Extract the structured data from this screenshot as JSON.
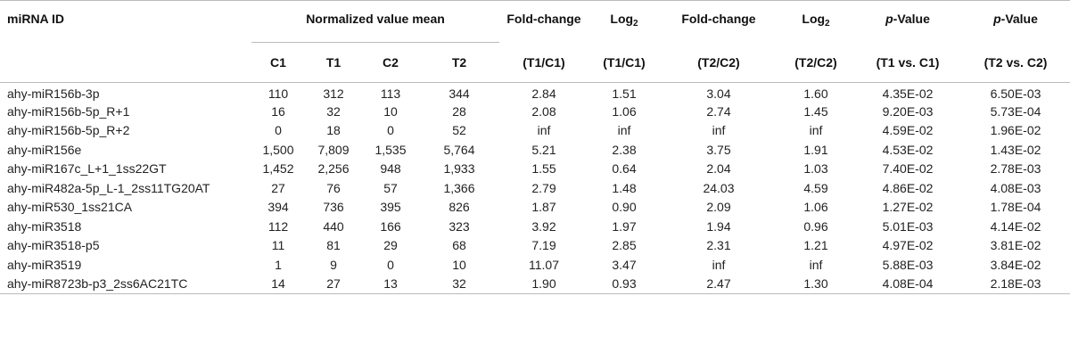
{
  "table": {
    "header": {
      "mirna_id": "miRNA ID",
      "norm_mean": "Normalized value mean",
      "sub_cols": [
        "C1",
        "T1",
        "C2",
        "T2"
      ],
      "fold1_top": "Fold-change",
      "fold1_bottom": "(T1/C1)",
      "log1_top_main": "Log",
      "log1_top_sub": "2",
      "log1_bottom": "(T1/C1)",
      "fold2_top": "Fold-change",
      "fold2_bottom": "(T2/C2)",
      "log2_top_main": "Log",
      "log2_top_sub": "2",
      "log2_bottom": "(T2/C2)",
      "p1_italic": "p",
      "p1_rest": "-Value",
      "p1_bottom": "(T1 vs. C1)",
      "p2_italic": "p",
      "p2_rest": "-Value",
      "p2_bottom": "(T2 vs. C2)"
    },
    "rows": [
      [
        "ahy-miR156b-3p",
        "110",
        "312",
        "113",
        "344",
        "2.84",
        "1.51",
        "3.04",
        "1.60",
        "4.35E-02",
        "6.50E-03"
      ],
      [
        "ahy-miR156b-5p_R+1",
        "16",
        "32",
        "10",
        "28",
        "2.08",
        "1.06",
        "2.74",
        "1.45",
        "9.20E-03",
        "5.73E-04"
      ],
      [
        "ahy-miR156b-5p_R+2",
        "0",
        "18",
        "0",
        "52",
        "inf",
        "inf",
        "inf",
        "inf",
        "4.59E-02",
        "1.96E-02"
      ],
      [
        "ahy-miR156e",
        "1,500",
        "7,809",
        "1,535",
        "5,764",
        "5.21",
        "2.38",
        "3.75",
        "1.91",
        "4.53E-02",
        "1.43E-02"
      ],
      [
        "ahy-miR167c_L+1_1ss22GT",
        "1,452",
        "2,256",
        "948",
        "1,933",
        "1.55",
        "0.64",
        "2.04",
        "1.03",
        "7.40E-02",
        "2.78E-03"
      ],
      [
        "ahy-miR482a-5p_L-1_2ss11TG20AT",
        "27",
        "76",
        "57",
        "1,366",
        "2.79",
        "1.48",
        "24.03",
        "4.59",
        "4.86E-02",
        "4.08E-03"
      ],
      [
        "ahy-miR530_1ss21CA",
        "394",
        "736",
        "395",
        "826",
        "1.87",
        "0.90",
        "2.09",
        "1.06",
        "1.27E-02",
        "1.78E-04"
      ],
      [
        "ahy-miR3518",
        "112",
        "440",
        "166",
        "323",
        "3.92",
        "1.97",
        "1.94",
        "0.96",
        "5.01E-03",
        "4.14E-02"
      ],
      [
        "ahy-miR3518-p5",
        "11",
        "81",
        "29",
        "68",
        "7.19",
        "2.85",
        "2.31",
        "1.21",
        "4.97E-02",
        "3.81E-02"
      ],
      [
        "ahy-miR3519",
        "1",
        "9",
        "0",
        "10",
        "11.07",
        "3.47",
        "inf",
        "inf",
        "5.88E-03",
        "3.84E-02"
      ],
      [
        "ahy-miR8723b-p3_2ss6AC21TC",
        "14",
        "27",
        "13",
        "32",
        "1.90",
        "0.93",
        "2.47",
        "1.30",
        "4.08E-04",
        "2.18E-03"
      ]
    ]
  }
}
